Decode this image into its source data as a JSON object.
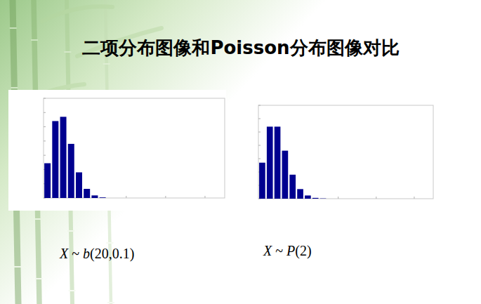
{
  "title": "二项分布图像和Poisson分布图像对比",
  "chart_data": [
    {
      "type": "bar",
      "title": "X ~ b(20,0.1)",
      "x": [
        0,
        1,
        2,
        3,
        4,
        5,
        6,
        7,
        8,
        9,
        10,
        11,
        12,
        13,
        14,
        15,
        16,
        17,
        18,
        19,
        20
      ],
      "values": [
        0.122,
        0.27,
        0.285,
        0.19,
        0.09,
        0.032,
        0.009,
        0.002,
        0,
        0,
        0,
        0,
        0,
        0,
        0,
        0,
        0,
        0,
        0,
        0,
        0
      ],
      "color": "#00008f",
      "xlim": [
        -0.5,
        22.5
      ],
      "ylim": [
        0,
        0.35
      ],
      "yticks": [
        0,
        0.05,
        0.1,
        0.15,
        0.2,
        0.25,
        0.3,
        0.35
      ],
      "xticks": [
        0,
        5,
        10,
        15,
        20
      ],
      "tick_labels": false,
      "grid": false
    },
    {
      "type": "bar",
      "title": "X ~ P(2)",
      "x": [
        0,
        1,
        2,
        3,
        4,
        5,
        6,
        7,
        8,
        9,
        10,
        11,
        12,
        13,
        14,
        15,
        16,
        17,
        18,
        19,
        20
      ],
      "values": [
        0.135,
        0.27,
        0.27,
        0.18,
        0.09,
        0.036,
        0.012,
        0.003,
        0.001,
        0,
        0,
        0,
        0,
        0,
        0,
        0,
        0,
        0,
        0,
        0,
        0
      ],
      "color": "#00008f",
      "xlim": [
        -0.5,
        22.5
      ],
      "ylim": [
        0,
        0.35
      ],
      "yticks": [
        0,
        0.05,
        0.1,
        0.15,
        0.2,
        0.25,
        0.3,
        0.35
      ],
      "xticks": [
        0,
        5,
        10,
        15,
        20
      ],
      "tick_labels": false,
      "grid": false
    }
  ]
}
